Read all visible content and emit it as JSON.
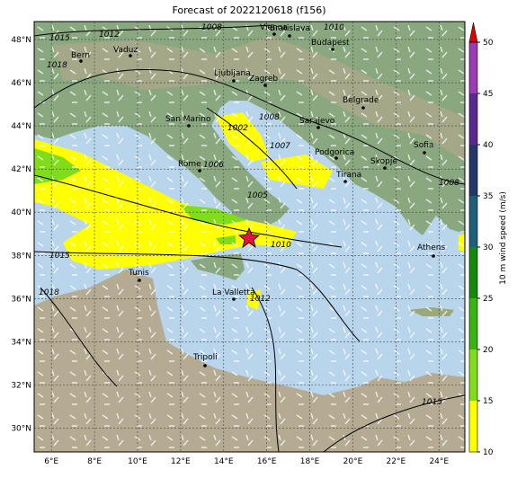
{
  "title": "Forecast of 2022120618 (f156)",
  "map": {
    "lon_range": [
      5.2,
      25.2
    ],
    "lat_range": [
      28.9,
      48.83
    ],
    "lon_ticks": [
      {
        "value": 6,
        "label": "6°E"
      },
      {
        "value": 8,
        "label": "8°E"
      },
      {
        "value": 10,
        "label": "10°E"
      },
      {
        "value": 12,
        "label": "12°E"
      },
      {
        "value": 14,
        "label": "14°E"
      },
      {
        "value": 16,
        "label": "16°E"
      },
      {
        "value": 18,
        "label": "18°E"
      },
      {
        "value": 20,
        "label": "20°E"
      },
      {
        "value": 22,
        "label": "22°E"
      },
      {
        "value": 24,
        "label": "24°E"
      }
    ],
    "lat_ticks": [
      {
        "value": 30,
        "label": "30°N"
      },
      {
        "value": 32,
        "label": "32°N"
      },
      {
        "value": 34,
        "label": "34°N"
      },
      {
        "value": 36,
        "label": "36°N"
      },
      {
        "value": 38,
        "label": "38°N"
      },
      {
        "value": 40,
        "label": "40°N"
      },
      {
        "value": 42,
        "label": "42°N"
      },
      {
        "value": 44,
        "label": "44°N"
      },
      {
        "value": 46,
        "label": "46°N"
      },
      {
        "value": 48,
        "label": "48°N"
      }
    ],
    "cities": [
      "Vienna",
      "Bratislava",
      "Budapest",
      "Bern",
      "Vaduz",
      "Ljubljana",
      "Zagreb",
      "Belgrade",
      "San Marino",
      "Sarajevo",
      "Rome",
      "Podgorica",
      "Skopje",
      "Sofia",
      "Tirana",
      "Tunis",
      "La Valletta",
      "Athens",
      "Tripoli"
    ],
    "isobar_labels": [
      "1015",
      "1012",
      "1008",
      "1010",
      "1018",
      "1008",
      "1002",
      "1007",
      "1006",
      "1005",
      "1010",
      "1015",
      "1018",
      "1012",
      "1008",
      "1015"
    ]
  },
  "colorbar": {
    "label": "10 m wind speed (m/s)",
    "ticks": [
      10,
      15,
      20,
      25,
      30,
      35,
      40,
      45,
      50
    ],
    "colors": [
      "#ffff00",
      "#7fdd1a",
      "#38b412",
      "#138a0c",
      "#1e5f7c",
      "#22386a",
      "#5a2990",
      "#9b3cb4"
    ],
    "extend_color": "#e00000"
  }
}
